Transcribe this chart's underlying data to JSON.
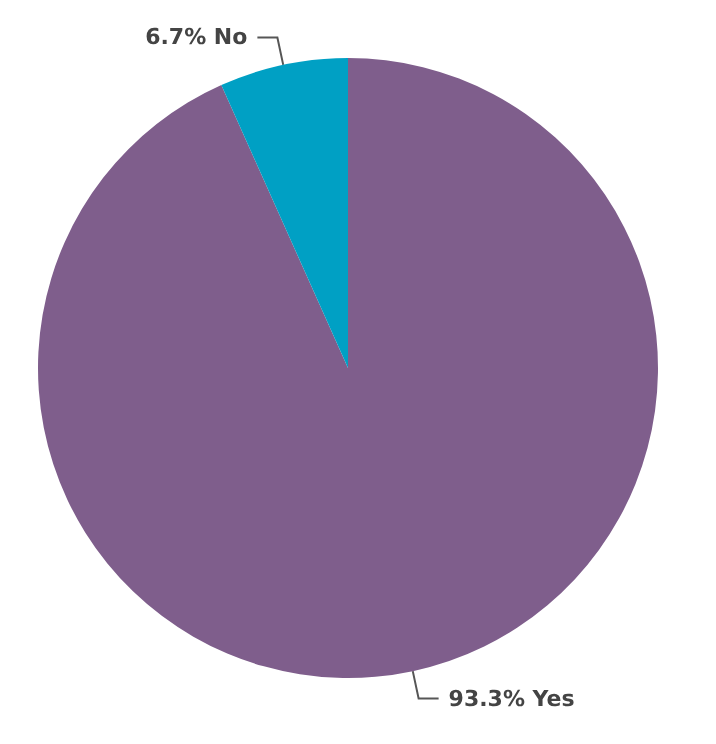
{
  "chart_data": {
    "type": "pie",
    "categories": [
      "Yes",
      "No"
    ],
    "values": [
      93.3,
      6.7
    ],
    "value_labels": [
      "93.3%",
      "6.7%"
    ],
    "colors": [
      "#7f5e8c",
      "#00a0c4"
    ],
    "legend": false
  }
}
